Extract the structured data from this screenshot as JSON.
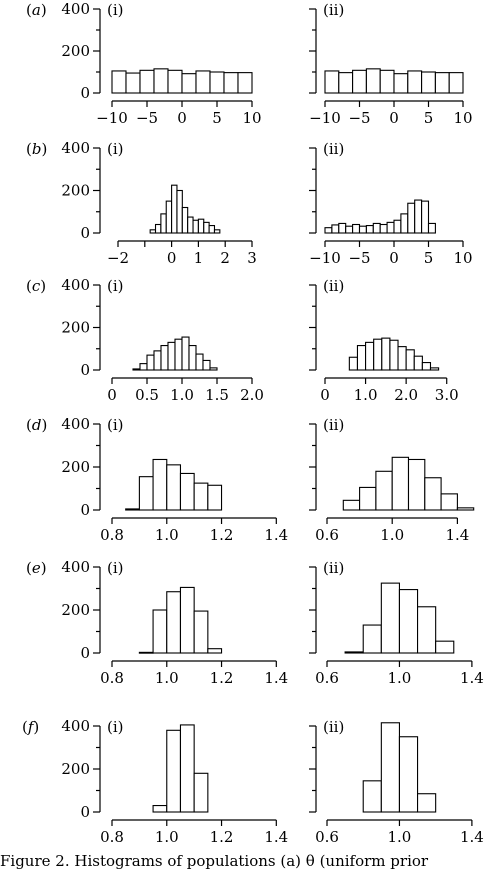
{
  "caption": "Figure 2. Histograms of populations (a) θ (uniform prior",
  "chart_data": [
    {
      "row": "a",
      "panels": [
        {
          "label": "(i)",
          "type": "bar",
          "xlim": [
            -10,
            10
          ],
          "ylim": [
            0,
            400
          ],
          "xticks": [
            -10,
            -5,
            0,
            5,
            10
          ],
          "yticks": [
            0,
            200,
            400
          ],
          "bin_edges": [
            -10,
            -8,
            -6,
            -4,
            -2,
            0,
            2,
            4,
            6,
            8,
            10
          ],
          "values": [
            105,
            95,
            108,
            115,
            108,
            92,
            105,
            100,
            97,
            97
          ]
        },
        {
          "label": "(ii)",
          "type": "bar",
          "xlim": [
            -10,
            10
          ],
          "ylim": [
            0,
            400
          ],
          "xticks": [
            -10,
            -5,
            0,
            5,
            10
          ],
          "yticks": [
            0,
            200,
            400
          ],
          "bin_edges": [
            -10,
            -8,
            -6,
            -4,
            -2,
            0,
            2,
            4,
            6,
            8,
            10
          ],
          "values": [
            105,
            97,
            108,
            115,
            108,
            92,
            105,
            100,
            97,
            97
          ]
        }
      ]
    },
    {
      "row": "b",
      "panels": [
        {
          "label": "(i)",
          "type": "bar",
          "xlim": [
            -2,
            3
          ],
          "ylim": [
            0,
            400
          ],
          "xticks": [
            -2,
            -1,
            0,
            1,
            2,
            3
          ],
          "xticklabels": [
            "−2",
            "",
            "0",
            "1",
            "2",
            "3"
          ],
          "yticks": [
            0,
            200,
            400
          ],
          "bin_edges": [
            -0.8,
            -0.6,
            -0.4,
            -0.2,
            0.0,
            0.2,
            0.4,
            0.6,
            0.8,
            1.0,
            1.2,
            1.4,
            1.6,
            1.8
          ],
          "values": [
            15,
            40,
            90,
            150,
            225,
            200,
            120,
            75,
            60,
            65,
            50,
            35,
            15
          ]
        },
        {
          "label": "(ii)",
          "type": "bar",
          "xlim": [
            -10,
            10
          ],
          "ylim": [
            0,
            400
          ],
          "xticks": [
            -10,
            -5,
            0,
            5,
            10
          ],
          "yticks": [
            0,
            200,
            400
          ],
          "bin_edges": [
            -10,
            -9,
            -8,
            -7,
            -6,
            -5,
            -4,
            -3,
            -2,
            -1,
            0,
            1,
            2,
            3,
            4,
            5,
            6
          ],
          "values": [
            25,
            38,
            45,
            32,
            40,
            32,
            35,
            45,
            40,
            50,
            60,
            90,
            140,
            155,
            150,
            45
          ]
        }
      ]
    },
    {
      "row": "c",
      "panels": [
        {
          "label": "(i)",
          "type": "bar",
          "xlim": [
            0,
            2.0
          ],
          "ylim": [
            0,
            400
          ],
          "xticks": [
            0,
            0.5,
            1.0,
            1.5,
            2.0
          ],
          "xticklabels": [
            "0",
            "0.5",
            "1.0",
            "1.5",
            "2.0"
          ],
          "yticks": [
            0,
            200,
            400
          ],
          "bin_edges": [
            0.3,
            0.4,
            0.5,
            0.6,
            0.7,
            0.8,
            0.9,
            1.0,
            1.1,
            1.2,
            1.3,
            1.4,
            1.5
          ],
          "values": [
            5,
            30,
            70,
            90,
            115,
            130,
            145,
            155,
            115,
            75,
            45,
            10
          ]
        },
        {
          "label": "(ii)",
          "type": "bar",
          "xlim": [
            0,
            3.5
          ],
          "ylim": [
            0,
            400
          ],
          "xticks": [
            0,
            1.0,
            2.0,
            3.0
          ],
          "xticklabels": [
            "0",
            "1.0",
            "2.0",
            "3.0"
          ],
          "yticks": [
            0,
            200,
            400
          ],
          "bin_edges": [
            0.6,
            0.8,
            1.0,
            1.2,
            1.4,
            1.6,
            1.8,
            2.0,
            2.2,
            2.4,
            2.6,
            2.8
          ],
          "values": [
            60,
            115,
            130,
            145,
            150,
            140,
            110,
            95,
            65,
            35,
            10
          ]
        }
      ]
    },
    {
      "row": "d",
      "panels": [
        {
          "label": "(i)",
          "type": "bar",
          "xlim": [
            0.8,
            1.45
          ],
          "ylim": [
            0,
            400
          ],
          "xticks": [
            0.8,
            1.0,
            1.2,
            1.4
          ],
          "xticklabels": [
            "0.8",
            "1.0",
            "1.2",
            "1.4"
          ],
          "yticks": [
            0,
            200,
            400
          ],
          "bin_edges": [
            0.85,
            0.9,
            0.95,
            1.0,
            1.05,
            1.1,
            1.15,
            1.2
          ],
          "values": [
            5,
            155,
            235,
            210,
            170,
            125,
            115
          ]
        },
        {
          "label": "(ii)",
          "type": "bar",
          "xlim": [
            0.6,
            1.6
          ],
          "ylim": [
            0,
            400
          ],
          "xticks": [
            0.6,
            1.0,
            1.4
          ],
          "xticklabels": [
            "0.6",
            "1.0",
            "1.4"
          ],
          "yticks": [
            0,
            200,
            400
          ],
          "bin_edges": [
            0.7,
            0.8,
            0.9,
            1.0,
            1.1,
            1.2,
            1.3,
            1.4,
            1.5
          ],
          "values": [
            45,
            105,
            180,
            245,
            235,
            150,
            75,
            10
          ]
        }
      ]
    },
    {
      "row": "e",
      "panels": [
        {
          "label": "(i)",
          "type": "bar",
          "xlim": [
            0.8,
            1.45
          ],
          "ylim": [
            0,
            400
          ],
          "xticks": [
            0.8,
            1.0,
            1.2,
            1.4
          ],
          "xticklabels": [
            "0.8",
            "1.0",
            "1.2",
            "1.4"
          ],
          "yticks": [
            0,
            200,
            400
          ],
          "bin_edges": [
            0.9,
            0.95,
            1.0,
            1.05,
            1.1,
            1.15,
            1.2
          ],
          "values": [
            3,
            200,
            285,
            305,
            195,
            20
          ]
        },
        {
          "label": "(ii)",
          "type": "bar",
          "xlim": [
            0.6,
            1.5
          ],
          "ylim": [
            0,
            400
          ],
          "xticks": [
            0.6,
            1.0,
            1.4
          ],
          "xticklabels": [
            "0.6",
            "1.0",
            "1.4"
          ],
          "yticks": [
            0,
            200,
            400
          ],
          "bin_edges": [
            0.7,
            0.8,
            0.9,
            1.0,
            1.1,
            1.2,
            1.3
          ],
          "values": [
            5,
            130,
            325,
            295,
            215,
            55
          ]
        }
      ]
    },
    {
      "row": "f",
      "panels": [
        {
          "label": "(i)",
          "type": "bar",
          "xlim": [
            0.8,
            1.45
          ],
          "ylim": [
            0,
            400
          ],
          "xticks": [
            0.8,
            1.0,
            1.2,
            1.4
          ],
          "xticklabels": [
            "0.8",
            "1.0",
            "1.2",
            "1.4"
          ],
          "yticks": [
            0,
            200,
            400
          ],
          "bin_edges": [
            0.95,
            1.0,
            1.05,
            1.1,
            1.15
          ],
          "values": [
            30,
            380,
            405,
            180
          ]
        },
        {
          "label": "(ii)",
          "type": "bar",
          "xlim": [
            0.6,
            1.5
          ],
          "ylim": [
            0,
            400
          ],
          "xticks": [
            0.6,
            1.0,
            1.4
          ],
          "xticklabels": [
            "0.6",
            "1.0",
            "1.4"
          ],
          "yticks": [
            0,
            200,
            400
          ],
          "bin_edges": [
            0.8,
            0.9,
            1.0,
            1.1,
            1.2
          ],
          "values": [
            145,
            415,
            350,
            85
          ]
        }
      ]
    }
  ]
}
